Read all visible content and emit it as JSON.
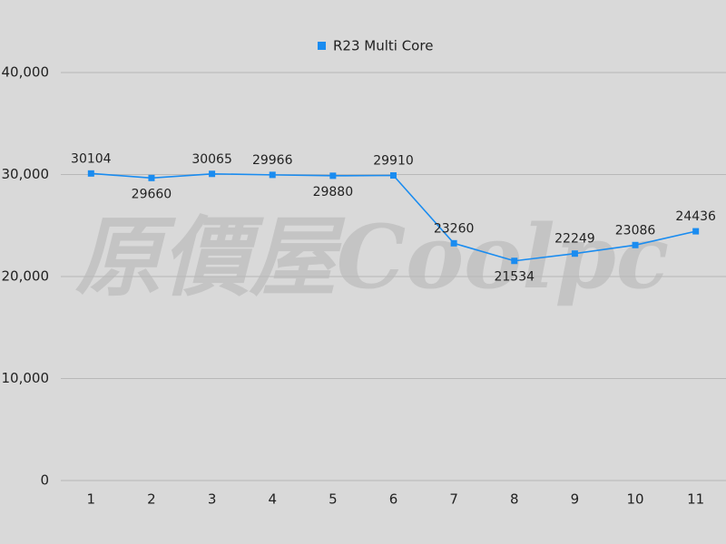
{
  "chart_data": {
    "type": "line",
    "legend": "top",
    "watermark": "原價屋Coolpc",
    "categories": [
      "1",
      "2",
      "3",
      "4",
      "5",
      "6",
      "7",
      "8",
      "9",
      "10",
      "11"
    ],
    "series": [
      {
        "name": "R23 Multi Core",
        "color": "#1a8cf0",
        "values": [
          30104,
          29660,
          30065,
          29966,
          29880,
          29910,
          23260,
          21534,
          22249,
          23086,
          24436
        ]
      }
    ],
    "ylim": [
      0,
      40000
    ],
    "yticks": [
      0,
      {
        "value": 10000,
        "label": "10,000"
      },
      {
        "value": 20000,
        "label": "20,000"
      },
      {
        "value": 30000,
        "label": "30,000"
      },
      {
        "value": 40000,
        "label": "40,000"
      }
    ],
    "grid": true
  }
}
